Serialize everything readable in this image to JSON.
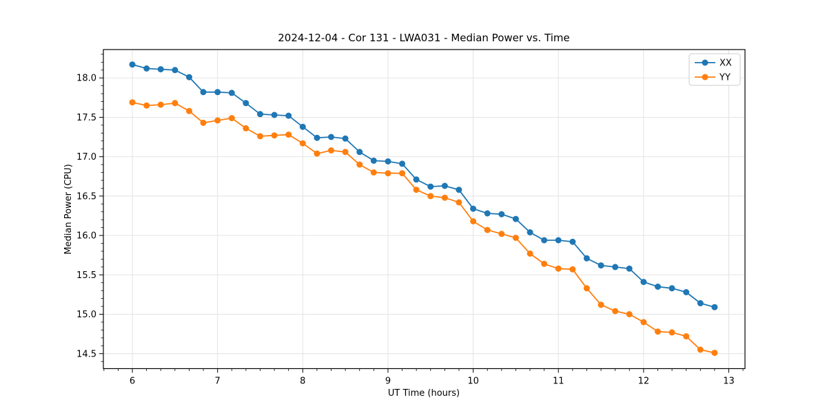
{
  "chart_data": {
    "type": "line",
    "title": "2024-12-04 - Cor 131 - LWA031 - Median Power vs. Time",
    "xlabel": "UT Time (hours)",
    "ylabel": "Median Power (CPU)",
    "xlim": [
      5.66,
      13.19
    ],
    "ylim": [
      14.31,
      18.36
    ],
    "xticks": [
      6,
      7,
      8,
      9,
      10,
      11,
      12,
      13
    ],
    "yticks": [
      14.5,
      15.0,
      15.5,
      16.0,
      16.5,
      17.0,
      17.5,
      18.0
    ],
    "grid": true,
    "legend_position": "upper right",
    "grid_color": "#e0e0e0",
    "spine_color": "#000000",
    "background_color": "#ffffff",
    "x": [
      6.0,
      6.167,
      6.333,
      6.5,
      6.667,
      6.833,
      7.0,
      7.167,
      7.333,
      7.5,
      7.667,
      7.833,
      8.0,
      8.167,
      8.333,
      8.5,
      8.667,
      8.833,
      9.0,
      9.167,
      9.333,
      9.5,
      9.667,
      9.833,
      10.0,
      10.167,
      10.333,
      10.5,
      10.667,
      10.833,
      11.0,
      11.167,
      11.333,
      11.5,
      11.667,
      11.833,
      12.0,
      12.167,
      12.333,
      12.5,
      12.667,
      12.833
    ],
    "series": [
      {
        "name": "XX",
        "color": "#1f77b4",
        "values": [
          18.17,
          18.12,
          18.11,
          18.1,
          18.01,
          17.82,
          17.82,
          17.81,
          17.68,
          17.54,
          17.53,
          17.52,
          17.38,
          17.24,
          17.25,
          17.23,
          17.06,
          16.95,
          16.94,
          16.91,
          16.71,
          16.62,
          16.63,
          16.58,
          16.34,
          16.28,
          16.27,
          16.21,
          16.04,
          15.94,
          15.94,
          15.92,
          15.71,
          15.62,
          15.6,
          15.58,
          15.41,
          15.35,
          15.33,
          15.28,
          15.14,
          15.09
        ]
      },
      {
        "name": "YY",
        "color": "#ff7f0e",
        "values": [
          17.69,
          17.65,
          17.66,
          17.68,
          17.58,
          17.43,
          17.46,
          17.49,
          17.36,
          17.26,
          17.27,
          17.28,
          17.17,
          17.04,
          17.08,
          17.06,
          16.9,
          16.8,
          16.79,
          16.79,
          16.58,
          16.5,
          16.48,
          16.42,
          16.18,
          16.07,
          16.02,
          15.97,
          15.77,
          15.64,
          15.58,
          15.57,
          15.33,
          15.12,
          15.04,
          15.0,
          14.9,
          14.78,
          14.77,
          14.72,
          14.55,
          14.51
        ]
      }
    ]
  }
}
